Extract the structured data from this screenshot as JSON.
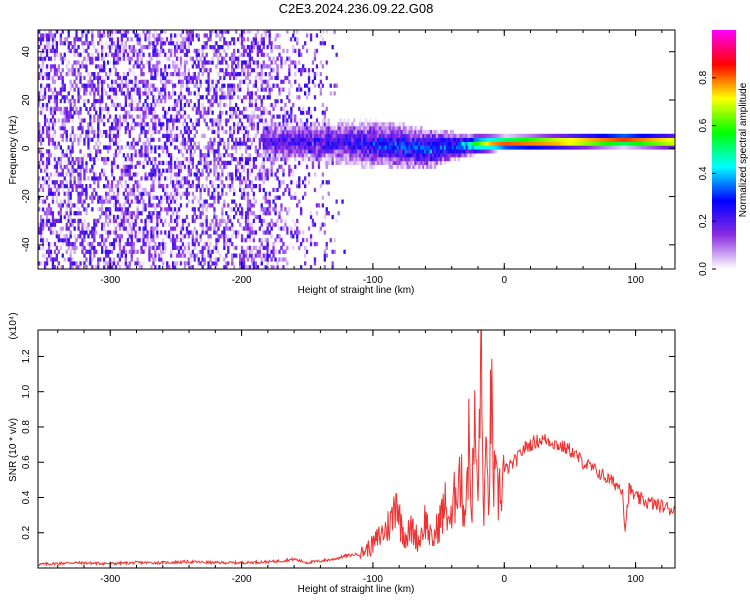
{
  "title": "C2E3.2024.236.09.22.G08",
  "chart_data": [
    {
      "type": "heatmap",
      "title": "C2E3.2024.236.09.22.G08",
      "xlabel": "Height of straight line (km)",
      "ylabel": "Frequency (Hz)",
      "xlim": [
        -355,
        130
      ],
      "ylim": [
        -50,
        49
      ],
      "x_ticks": [
        -300,
        -200,
        -100,
        0,
        100
      ],
      "x_tick_labels": [
        "-300",
        "-200",
        "-100",
        "0",
        "100"
      ],
      "y_ticks": [
        -40,
        -20,
        0,
        20,
        40
      ],
      "y_tick_labels": [
        "-40",
        "-20",
        "0",
        "20",
        "40"
      ],
      "colorbar": {
        "label": "Normalized spectral amplitude",
        "range": [
          0.0,
          1.0
        ],
        "ticks": [
          0.0,
          0.2,
          0.4,
          0.6,
          0.8
        ],
        "tick_labels": [
          "0.0",
          "0.2",
          "0.4",
          "0.6",
          "0.8"
        ],
        "colormap": [
          "#ffffff",
          "#8a2be2",
          "#0000ff",
          "#00ffff",
          "#00ff00",
          "#ffff00",
          "#ff0000",
          "#ff00ff"
        ]
      },
      "ridge": {
        "description_points": [
          [
            -180,
            2
          ],
          [
            -140,
            2
          ],
          [
            -100,
            1
          ],
          [
            -80,
            0
          ],
          [
            -60,
            -1
          ],
          [
            -40,
            0
          ],
          [
            -20,
            1
          ],
          [
            0,
            1.5
          ],
          [
            50,
            2
          ],
          [
            90,
            2.5
          ],
          [
            130,
            2
          ]
        ],
        "width_hz": [
          [
            -180,
            8
          ],
          [
            -100,
            10
          ],
          [
            -60,
            9
          ],
          [
            -30,
            5
          ],
          [
            0,
            3
          ],
          [
            130,
            3
          ]
        ],
        "amplitude": [
          [
            -180,
            0.25
          ],
          [
            -120,
            0.3
          ],
          [
            -90,
            0.38
          ],
          [
            -60,
            0.42
          ],
          [
            -40,
            0.45
          ],
          [
            -20,
            0.65
          ],
          [
            0,
            0.9
          ],
          [
            40,
            0.98
          ],
          [
            90,
            0.92
          ],
          [
            130,
            0.95
          ]
        ]
      },
      "noise_region": {
        "x_from": -355,
        "x_to": -120,
        "amplitude_max": 0.25
      }
    },
    {
      "type": "line",
      "xlabel": "Height of straight line (km)",
      "ylabel": "SNR (10 * v/v)",
      "y_scale_label": "(x10⁴)",
      "xlim": [
        -355,
        130
      ],
      "ylim": [
        0,
        1.35
      ],
      "x_ticks": [
        -300,
        -200,
        -100,
        0,
        100
      ],
      "x_tick_labels": [
        "-300",
        "-200",
        "-100",
        "0",
        "100"
      ],
      "y_ticks": [
        0.2,
        0.4,
        0.6,
        0.8,
        1.0,
        1.2
      ],
      "y_tick_labels": [
        "0.2",
        "0.4",
        "0.6",
        "0.8",
        "1.0",
        "1.2"
      ],
      "color": "#ee3333",
      "series": [
        {
          "x": [
            -355,
            -330,
            -300,
            -280,
            -260,
            -240,
            -220,
            -200,
            -180,
            -170,
            -160,
            -150,
            -140,
            -130,
            -120,
            -110,
            -100,
            -95,
            -90,
            -85,
            -82,
            -80,
            -75,
            -70,
            -65,
            -60,
            -55,
            -50,
            -45,
            -40,
            -35,
            -30,
            -27,
            -25,
            -22,
            -20,
            -18,
            -16,
            -14,
            -12,
            -10,
            -8,
            -5,
            0,
            5,
            10,
            15,
            20,
            25,
            30,
            35,
            40,
            50,
            60,
            70,
            80,
            90,
            92,
            95,
            100,
            110,
            120,
            130
          ],
          "values": [
            0.02,
            0.03,
            0.025,
            0.03,
            0.03,
            0.035,
            0.03,
            0.03,
            0.035,
            0.04,
            0.05,
            0.03,
            0.04,
            0.05,
            0.07,
            0.08,
            0.13,
            0.18,
            0.22,
            0.28,
            0.45,
            0.28,
            0.18,
            0.22,
            0.15,
            0.28,
            0.14,
            0.25,
            0.35,
            0.25,
            0.58,
            0.32,
            0.7,
            0.35,
            0.82,
            0.3,
            1.35,
            0.35,
            0.55,
            0.4,
            0.95,
            0.5,
            0.4,
            0.55,
            0.58,
            0.62,
            0.68,
            0.7,
            0.72,
            0.73,
            0.72,
            0.7,
            0.67,
            0.6,
            0.55,
            0.5,
            0.45,
            0.22,
            0.45,
            0.4,
            0.37,
            0.35,
            0.33
          ]
        }
      ]
    }
  ]
}
